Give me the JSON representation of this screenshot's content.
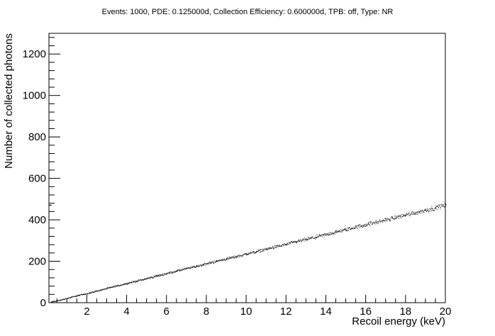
{
  "chart_data": {
    "type": "scatter",
    "title": "Events: 1000, PDE: 0.125000d, Collection Efficiency: 0.600000d, TPB: off, Type: NR",
    "xlabel": "Recoil energy (keV)",
    "ylabel": "Number of collected photons",
    "xlim": [
      0.1,
      20
    ],
    "ylim": [
      0,
      1300
    ],
    "x_ticks": [
      2,
      4,
      6,
      8,
      10,
      12,
      14,
      16,
      18,
      20
    ],
    "y_ticks": [
      0,
      200,
      400,
      600,
      800,
      1000,
      1200
    ],
    "grid": false,
    "legend": "none",
    "marker_color": "#000000",
    "points": [
      [
        0.2,
        5
      ],
      [
        0.5,
        10
      ],
      [
        1.0,
        22
      ],
      [
        1.5,
        35
      ],
      [
        2.0,
        45
      ],
      [
        2.5,
        58
      ],
      [
        3.0,
        70
      ],
      [
        3.5,
        82
      ],
      [
        4.0,
        94
      ],
      [
        4.5,
        106
      ],
      [
        5.0,
        118
      ],
      [
        5.5,
        130
      ],
      [
        6.0,
        142
      ],
      [
        6.5,
        154
      ],
      [
        7.0,
        166
      ],
      [
        7.5,
        177
      ],
      [
        8.0,
        189
      ],
      [
        8.5,
        201
      ],
      [
        9.0,
        213
      ],
      [
        9.5,
        224
      ],
      [
        10.0,
        236
      ],
      [
        10.5,
        248
      ],
      [
        11.0,
        260
      ],
      [
        11.5,
        271
      ],
      [
        12.0,
        283
      ],
      [
        12.5,
        295
      ],
      [
        13.0,
        307
      ],
      [
        13.5,
        318
      ],
      [
        14.0,
        330
      ],
      [
        14.5,
        342
      ],
      [
        15.0,
        354
      ],
      [
        15.5,
        366
      ],
      [
        16.0,
        378
      ],
      [
        16.5,
        389
      ],
      [
        17.0,
        401
      ],
      [
        17.5,
        413
      ],
      [
        18.0,
        425
      ],
      [
        18.5,
        436
      ],
      [
        19.0,
        448
      ],
      [
        19.5,
        460
      ],
      [
        20.0,
        472
      ]
    ]
  }
}
